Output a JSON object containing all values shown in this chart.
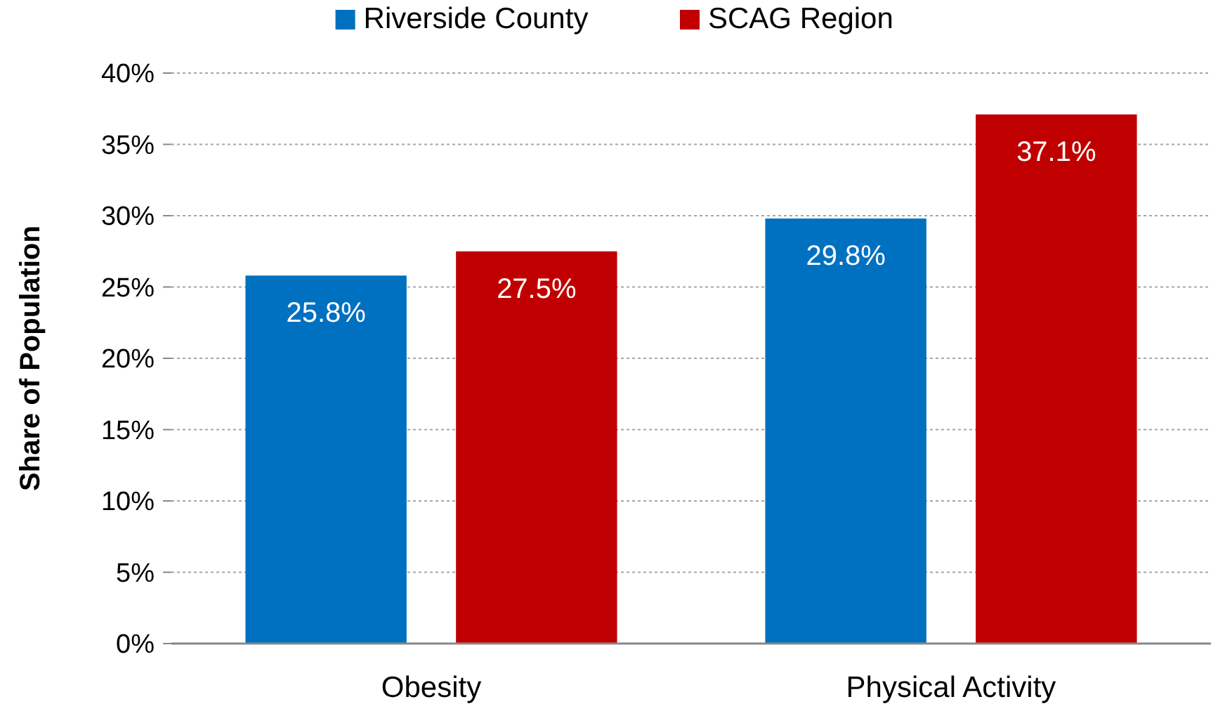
{
  "chart_data": {
    "type": "bar",
    "ylabel": "Share of Population",
    "categories": [
      "Obesity",
      "Physical Activity"
    ],
    "series": [
      {
        "name": "Riverside County",
        "color": "#0070c0",
        "values": [
          25.8,
          29.8
        ],
        "value_labels": [
          "25.8%",
          "29.8%"
        ]
      },
      {
        "name": "SCAG Region",
        "color": "#c00000",
        "values": [
          27.5,
          37.1
        ],
        "value_labels": [
          "27.5%",
          "37.1%"
        ]
      }
    ],
    "ylim": [
      0,
      40
    ],
    "yticks": [
      {
        "value": 0,
        "label": "0%"
      },
      {
        "value": 5,
        "label": "5%"
      },
      {
        "value": 10,
        "label": "10%"
      },
      {
        "value": 15,
        "label": "15%"
      },
      {
        "value": 20,
        "label": "20%"
      },
      {
        "value": 25,
        "label": "25%"
      },
      {
        "value": 30,
        "label": "30%"
      },
      {
        "value": 35,
        "label": "35%"
      },
      {
        "value": 40,
        "label": "40%"
      }
    ],
    "grid": "y",
    "legend": "top"
  }
}
